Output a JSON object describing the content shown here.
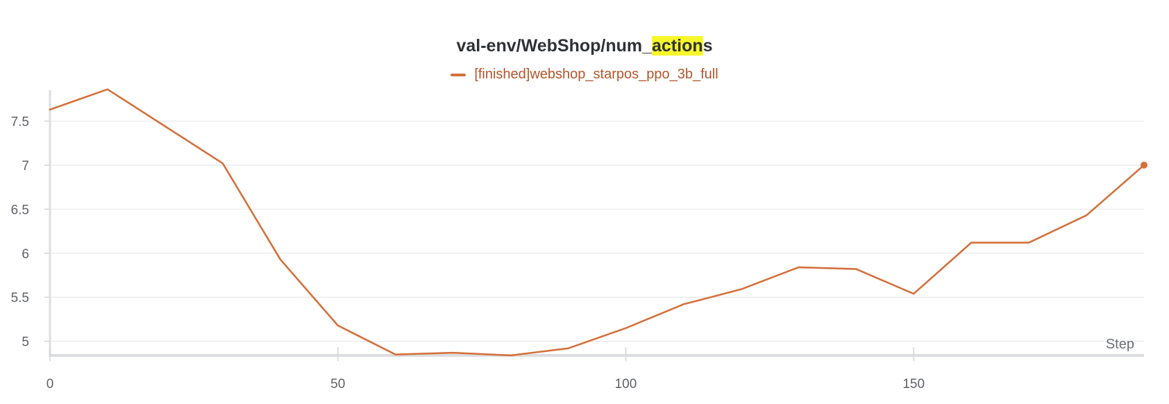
{
  "chart_data": {
    "type": "line",
    "title": "val-env/WebShop/num_actions",
    "title_parts": {
      "before": "val-env/WebShop/num_",
      "highlight": "action",
      "after": "s"
    },
    "xlabel": "Step",
    "ylabel": "",
    "xlim": [
      0,
      190
    ],
    "ylim": [
      4.84,
      7.85
    ],
    "x_ticks": [
      0,
      50,
      100,
      150
    ],
    "y_ticks": [
      5,
      5.5,
      6,
      6.5,
      7,
      7.5
    ],
    "y_tick_labels": [
      "5",
      "5.5",
      "6",
      "6.5",
      "7",
      "7.5"
    ],
    "grid": true,
    "legend_position": "top-center",
    "series": [
      {
        "name": "[finished]webshop_starpos_ppo_3b_full",
        "color": "#d4703c",
        "x": [
          0,
          10,
          20,
          30,
          40,
          50,
          60,
          70,
          80,
          90,
          100,
          110,
          120,
          130,
          140,
          150,
          160,
          170,
          180,
          190
        ],
        "y": [
          7.63,
          7.86,
          7.44,
          7.02,
          5.93,
          5.18,
          4.85,
          4.87,
          4.84,
          4.92,
          5.15,
          5.42,
          5.59,
          5.84,
          5.82,
          5.54,
          6.12,
          6.12,
          6.43,
          7.0
        ]
      }
    ]
  }
}
